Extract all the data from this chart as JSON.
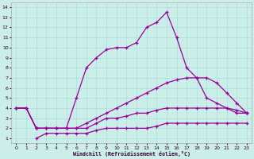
{
  "xlabel": "Windchill (Refroidissement éolien,°C)",
  "bg_color": "#cceee8",
  "grid_color": "#aadddd",
  "line_color": "#990099",
  "xlim": [
    -0.5,
    23.5
  ],
  "ylim": [
    0.5,
    14.5
  ],
  "xticks": [
    0,
    1,
    2,
    3,
    4,
    5,
    6,
    7,
    8,
    9,
    10,
    11,
    12,
    13,
    14,
    15,
    16,
    17,
    18,
    19,
    20,
    21,
    22,
    23
  ],
  "yticks": [
    1,
    2,
    3,
    4,
    5,
    6,
    7,
    8,
    9,
    10,
    11,
    12,
    13,
    14
  ],
  "series": [
    {
      "x": [
        0,
        1,
        2,
        3,
        4,
        5,
        6,
        7,
        8,
        9,
        10,
        11,
        12,
        13,
        14,
        15,
        16,
        17,
        18,
        19,
        20,
        21,
        22,
        23
      ],
      "y": [
        4,
        4,
        2,
        2,
        2,
        2,
        5,
        8,
        9,
        9.8,
        10,
        10,
        10.5,
        12,
        12.5,
        13.5,
        11,
        8,
        7,
        5,
        4.5,
        4,
        3.5,
        3.5
      ]
    },
    {
      "x": [
        0,
        1,
        2,
        3,
        4,
        5,
        6,
        7,
        8,
        9,
        10,
        11,
        12,
        13,
        14,
        15,
        16,
        17,
        18,
        19,
        20,
        21,
        22,
        23
      ],
      "y": [
        4,
        4,
        2,
        2,
        2,
        2,
        2,
        2.5,
        3,
        3.5,
        4,
        4.5,
        5,
        5.5,
        6,
        6.5,
        6.8,
        7,
        7,
        7,
        6.5,
        5.5,
        4.5,
        3.5
      ]
    },
    {
      "x": [
        0,
        1,
        2,
        3,
        4,
        5,
        6,
        7,
        8,
        9,
        10,
        11,
        12,
        13,
        14,
        15,
        16,
        17,
        18,
        19,
        20,
        21,
        22,
        23
      ],
      "y": [
        4,
        4,
        2,
        2,
        2,
        2,
        2,
        2,
        2.5,
        3,
        3,
        3.2,
        3.5,
        3.5,
        3.8,
        4,
        4,
        4,
        4,
        4,
        4,
        4,
        3.8,
        3.5
      ]
    },
    {
      "x": [
        2,
        3,
        4,
        5,
        6,
        7,
        8,
        9,
        10,
        11,
        12,
        13,
        14,
        15,
        16,
        17,
        18,
        19,
        20,
        21,
        22,
        23
      ],
      "y": [
        1,
        1.5,
        1.5,
        1.5,
        1.5,
        1.5,
        1.8,
        2,
        2,
        2,
        2,
        2,
        2.2,
        2.5,
        2.5,
        2.5,
        2.5,
        2.5,
        2.5,
        2.5,
        2.5,
        2.5
      ]
    }
  ]
}
